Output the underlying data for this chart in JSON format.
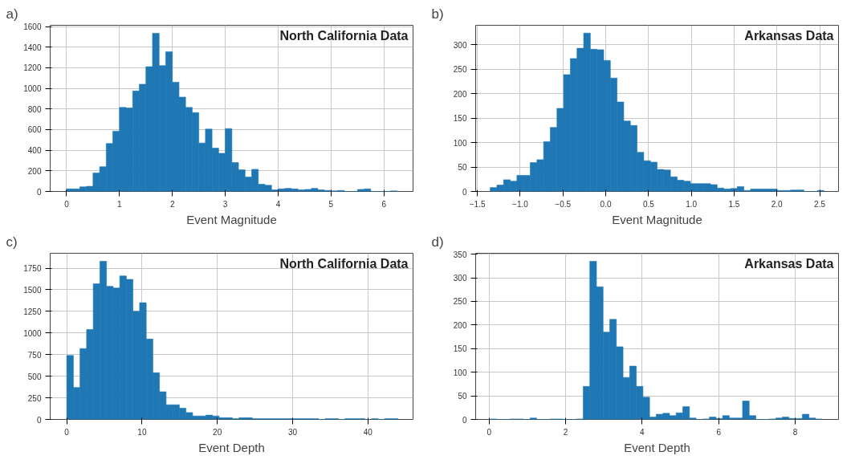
{
  "chart_data": [
    {
      "type": "histogram",
      "title": "North California Data",
      "xlabel": "Event Magnitude",
      "annotations": [
        "a)"
      ],
      "color": "#1f77b4",
      "grid": true,
      "bins": [
        0,
        0.125,
        0.25,
        0.375,
        0.5,
        0.625,
        0.75,
        0.875,
        1,
        1.125,
        1.25,
        1.375,
        1.5,
        1.625,
        1.75,
        1.875,
        2,
        2.125,
        2.25,
        2.375,
        2.5,
        2.625,
        2.75,
        2.875,
        3,
        3.125,
        3.25,
        3.375,
        3.5,
        3.625,
        3.75,
        3.875,
        4,
        4.125,
        4.25,
        4.375,
        4.5,
        4.625,
        4.75,
        4.875,
        5,
        5.125,
        5.25,
        5.375,
        5.5,
        5.625,
        5.75,
        5.875,
        6,
        6.125,
        6.25
      ],
      "values": [
        25,
        25,
        45,
        50,
        180,
        240,
        465,
        585,
        815,
        810,
        975,
        1040,
        1210,
        1535,
        1220,
        1355,
        1060,
        915,
        815,
        765,
        470,
        605,
        420,
        370,
        610,
        280,
        210,
        140,
        215,
        70,
        60,
        15,
        25,
        30,
        25,
        15,
        20,
        30,
        15,
        10,
        5,
        10,
        0,
        0,
        20,
        25,
        0,
        0,
        0,
        5
      ],
      "xlim": [
        -0.31,
        6.55
      ],
      "ylim": [
        0,
        1612
      ],
      "xticks": [
        0,
        1,
        2,
        3,
        4,
        5,
        6
      ],
      "yticks": [
        0,
        200,
        400,
        600,
        800,
        1000,
        1200,
        1400,
        1600
      ]
    },
    {
      "type": "histogram",
      "title": "Arkansas Data",
      "xlabel": "Event Magnitude",
      "annotations": [
        "b)"
      ],
      "color": "#1f77b4",
      "grid": true,
      "bins": [
        -1.35,
        -1.272,
        -1.194,
        -1.116,
        -1.038,
        -0.96,
        -0.882,
        -0.804,
        -0.726,
        -0.648,
        -0.57,
        -0.492,
        -0.414,
        -0.336,
        -0.258,
        -0.18,
        -0.102,
        -0.024,
        0.054,
        0.132,
        0.21,
        0.288,
        0.366,
        0.444,
        0.522,
        0.6,
        0.678,
        0.756,
        0.834,
        0.912,
        0.99,
        1.068,
        1.146,
        1.224,
        1.302,
        1.38,
        1.458,
        1.536,
        1.614,
        1.692,
        1.77,
        1.848,
        1.926,
        2.004,
        2.082,
        2.16,
        2.238,
        2.316,
        2.394,
        2.472,
        2.55
      ],
      "values": [
        8,
        13,
        24,
        21,
        33,
        33,
        59,
        65,
        102,
        131,
        170,
        239,
        272,
        293,
        324,
        291,
        290,
        268,
        232,
        183,
        144,
        135,
        80,
        63,
        60,
        45,
        44,
        30,
        23,
        21,
        16,
        16,
        16,
        14,
        7,
        5,
        6,
        10,
        2,
        5,
        5,
        5,
        5,
        2,
        2,
        3,
        3,
        0,
        0,
        2
      ],
      "xlim": [
        -1.52,
        2.72
      ],
      "ylim": [
        0,
        340
      ],
      "xticks": [
        {
          "value": -1.5,
          "label": "−1.5"
        },
        {
          "value": -1,
          "label": "−1.0"
        },
        {
          "value": -0.5,
          "label": "−0.5"
        },
        {
          "value": 0,
          "label": "0.0"
        },
        {
          "value": 0.5,
          "label": "0.5"
        },
        {
          "value": 1,
          "label": "1.0"
        },
        {
          "value": 1.5,
          "label": "1.5"
        },
        {
          "value": 2,
          "label": "2.0"
        },
        {
          "value": 2.5,
          "label": "2.5"
        }
      ],
      "yticks": [
        0,
        50,
        100,
        150,
        200,
        250,
        300
      ]
    },
    {
      "type": "histogram",
      "title": "North California Data",
      "xlabel": "Event Depth",
      "annotations": [
        "c)"
      ],
      "color": "#1f77b4",
      "grid": true,
      "bins": [
        0,
        0.88,
        1.76,
        2.64,
        3.52,
        4.4,
        5.28,
        6.16,
        7.04,
        7.92,
        8.8,
        9.68,
        10.56,
        11.44,
        12.32,
        13.2,
        14.08,
        14.96,
        15.84,
        16.72,
        17.6,
        18.48,
        19.36,
        20.24,
        21.12,
        22,
        22.88,
        23.76,
        24.64,
        25.52,
        26.4,
        27.28,
        28.16,
        29.04,
        29.92,
        30.8,
        31.68,
        32.56,
        33.44,
        34.32,
        35.2,
        36.08,
        36.96,
        37.84,
        38.72,
        39.6,
        40.48,
        41.36,
        42.24,
        43.12,
        44
      ],
      "values": [
        740,
        370,
        820,
        1040,
        1570,
        1830,
        1540,
        1520,
        1660,
        1620,
        1250,
        1350,
        930,
        540,
        320,
        170,
        170,
        130,
        80,
        40,
        40,
        50,
        40,
        20,
        20,
        10,
        20,
        20,
        10,
        10,
        10,
        10,
        10,
        10,
        10,
        10,
        10,
        10,
        0,
        10,
        10,
        0,
        10,
        10,
        10,
        0,
        10,
        0,
        10,
        10
      ],
      "xlim": [
        -2.2,
        46
      ],
      "ylim": [
        0,
        1922
      ],
      "xticks": [
        0,
        10,
        20,
        30,
        40
      ],
      "yticks": [
        0,
        250,
        500,
        750,
        1000,
        1250,
        1500,
        1750
      ]
    },
    {
      "type": "histogram",
      "title": "Arkansas Data",
      "xlabel": "Event Depth",
      "annotations": [
        "d)"
      ],
      "color": "#1f77b4",
      "grid": true,
      "bins": [
        0.03,
        0.2035,
        0.377,
        0.5505,
        0.724,
        0.8975,
        1.071,
        1.2445,
        1.418,
        1.5915,
        1.765,
        1.9385,
        2.112,
        2.2855,
        2.459,
        2.6325,
        2.806,
        2.9795,
        3.153,
        3.3265,
        3.5,
        3.6735,
        3.847,
        4.0205,
        4.194,
        4.3675,
        4.541,
        4.7145,
        4.888,
        5.0615,
        5.235,
        5.4085,
        5.582,
        5.7555,
        5.929,
        6.1025,
        6.276,
        6.4495,
        6.623,
        6.7965,
        6.97,
        7.1435,
        7.317,
        7.4905,
        7.664,
        7.8375,
        8.011,
        8.1845,
        8.358,
        8.5315,
        8.705
      ],
      "values": [
        1,
        0,
        0,
        1,
        1,
        0,
        3,
        0,
        0,
        1,
        1,
        0,
        0,
        1,
        70,
        335,
        281,
        185,
        212,
        154,
        89,
        113,
        70,
        47,
        5,
        11,
        13,
        8,
        14,
        27,
        3,
        0,
        1,
        5,
        2,
        8,
        3,
        3,
        39,
        8,
        0,
        0,
        1,
        3,
        5,
        2,
        2,
        11,
        3,
        1
      ],
      "xlim": [
        -0.35,
        9.13
      ],
      "ylim": [
        0,
        352
      ],
      "xticks": [
        0,
        2,
        4,
        6,
        8
      ],
      "yticks": [
        0,
        50,
        100,
        150,
        200,
        250,
        300,
        350
      ]
    }
  ]
}
